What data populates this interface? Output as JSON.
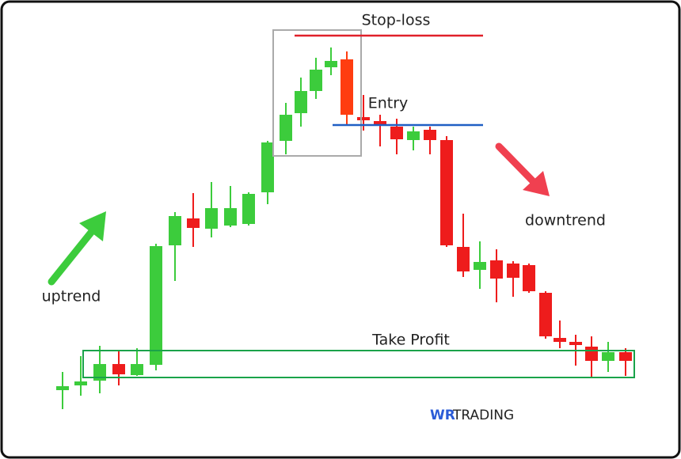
{
  "labels": {
    "stop_loss": "Stop-loss",
    "entry": "Entry",
    "take_profit": "Take Profit",
    "uptrend": "uptrend",
    "downtrend": "downtrend"
  },
  "logo": {
    "mark": "WR",
    "text": "TRADING"
  }
}
